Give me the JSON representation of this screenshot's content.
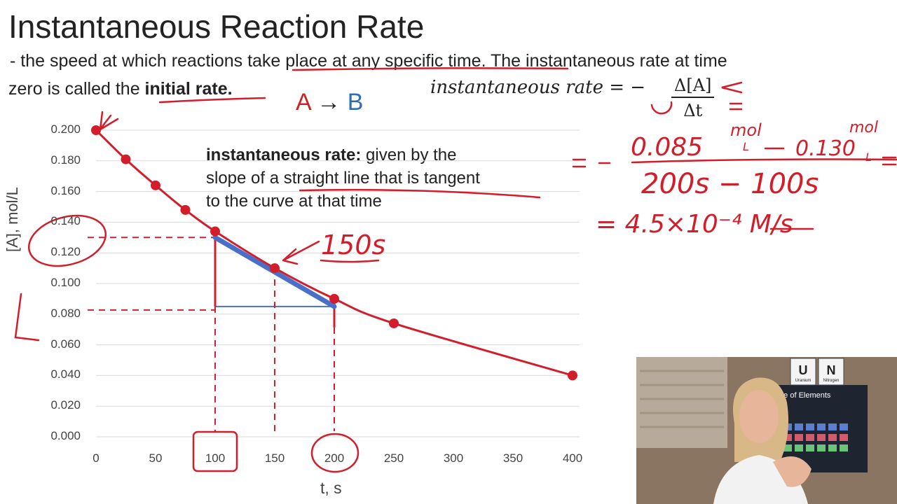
{
  "slide": {
    "title": "Instantaneous Reaction Rate",
    "definition_line1": " - the speed at which reactions take place at any specific time. The instantaneous rate at time",
    "definition_line2_prefix": "zero is called the ",
    "definition_line2_bold": "initial rate.",
    "reaction": {
      "a": "A",
      "arrow": "→",
      "b": "B"
    },
    "formula_left": "instantaneous rate = −",
    "formula_numerator": "Δ[A]",
    "formula_denominator": "Δt",
    "callout_bold": "instantaneous rate:",
    "callout_line1_rest": " given by the",
    "callout_line2": "slope of a straight line that is tangent",
    "callout_line3": "to the curve at that time"
  },
  "handwriting": {
    "tangent_time": "150s",
    "numerator": "0.085 mol/L − 0.130 mol/L",
    "numerator_first": "0.085",
    "numerator_second": "0.130",
    "unit": "mol",
    "unit_den": "L",
    "denominator": "200s − 100s",
    "result": "= 4.5×10⁻⁴ M/s",
    "result_unit_num": "M",
    "result_unit_den": "s"
  },
  "chart_data": {
    "type": "scatter",
    "xlabel": "t, s",
    "ylabel": "[A], mol/L",
    "xlim": [
      0,
      400
    ],
    "ylim": [
      0,
      0.2
    ],
    "x_ticks": [
      "0",
      "50",
      "100",
      "150",
      "200",
      "250",
      "300",
      "350",
      "400"
    ],
    "y_ticks": [
      "0.200",
      "0.180",
      "0.160",
      "0.140",
      "0.120",
      "0.100",
      "0.080",
      "0.060",
      "0.040",
      "0.020",
      "0.000"
    ],
    "grid": "horizontal",
    "series": [
      {
        "x": [
          0,
          25,
          50,
          75,
          100,
          150,
          200,
          250,
          400
        ],
        "y": [
          0.2,
          0.181,
          0.164,
          0.148,
          0.134,
          0.11,
          0.09,
          0.074,
          0.04
        ],
        "color": "#d21e2a"
      }
    ],
    "tangent": {
      "x": [
        100,
        200
      ],
      "y": [
        0.13,
        0.085
      ],
      "color": "#4a6fc9"
    },
    "triangle": {
      "x": [
        100,
        200
      ],
      "y_top": 0.13,
      "y_base": 0.085
    }
  },
  "colors": {
    "ink": "#d21e2a",
    "blue": "#4a6fc9",
    "reaction_b": "#2e6fb5",
    "text": "#222222"
  },
  "webcam": {
    "chart_text": "Table of Elements",
    "tiles": [
      "U",
      "N"
    ],
    "tile_names": [
      "Uranium",
      "Nitrogen"
    ]
  }
}
